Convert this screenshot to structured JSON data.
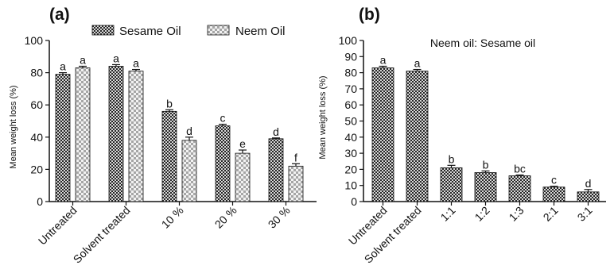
{
  "colors": {
    "sesame": "#3a3a3a",
    "neem": "#b8b8b8",
    "axis": "#111111",
    "background": "#ffffff"
  },
  "chart_data": [
    {
      "type": "bar",
      "panel_label": "(a)",
      "title": "",
      "xlabel": "",
      "ylabel": "Mean weight loss (%)",
      "ylim": [
        0,
        100
      ],
      "yticks": [
        0,
        20,
        40,
        60,
        80,
        100
      ],
      "categories": [
        "Untreated",
        "Solvent treated",
        "10 %",
        "20 %",
        "30 %"
      ],
      "legend_position": "top",
      "grid": false,
      "series": [
        {
          "name": "Sesame Oil",
          "pattern": "dark-checker",
          "values": [
            79,
            84,
            56,
            47,
            39
          ],
          "errors": [
            1,
            1,
            1,
            1,
            0.5
          ],
          "letters": [
            "a",
            "a",
            "b",
            "c",
            "d"
          ]
        },
        {
          "name": "Neem Oil",
          "pattern": "light-checker",
          "values": [
            83,
            81,
            38,
            30,
            22
          ],
          "errors": [
            1,
            1,
            2,
            2,
            1.5
          ],
          "letters": [
            "a",
            "a",
            "d",
            "e",
            "f"
          ]
        }
      ]
    },
    {
      "type": "bar",
      "panel_label": "(b)",
      "title": "Neem oil: Sesame oil",
      "xlabel": "",
      "ylabel": "Mean weight loss (%)",
      "ylim": [
        0,
        100
      ],
      "yticks": [
        0,
        10,
        20,
        30,
        40,
        50,
        60,
        70,
        80,
        90,
        100
      ],
      "categories": [
        "Untreated",
        "Solvent treated",
        "1:1",
        "1:2",
        "1:3",
        "2:1",
        "3:1"
      ],
      "grid": false,
      "series": [
        {
          "pattern": "dark-checker",
          "values": [
            83,
            81,
            21,
            18,
            16,
            9,
            6
          ],
          "errors": [
            1,
            1,
            1.5,
            1,
            0.5,
            0.5,
            1.5
          ],
          "letters": [
            "a",
            "a",
            "b",
            "b",
            "bc",
            "c",
            "d"
          ]
        }
      ]
    }
  ]
}
